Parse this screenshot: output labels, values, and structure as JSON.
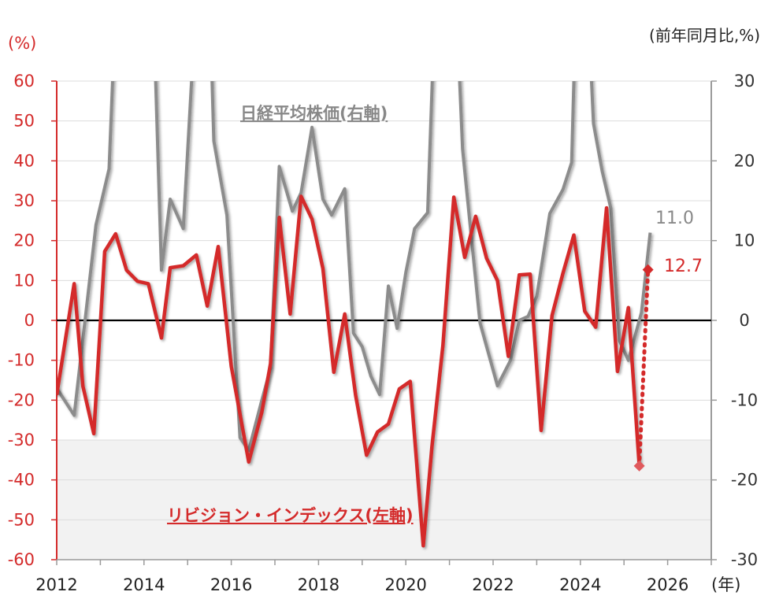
{
  "chart_data": {
    "type": "line",
    "left_axis": {
      "unit": "(%)",
      "ylim": [
        -60,
        60
      ],
      "ticks": [
        60,
        50,
        40,
        30,
        20,
        10,
        0,
        -10,
        -20,
        -30,
        -40,
        -50,
        -60
      ],
      "color": "#d42a2a"
    },
    "right_axis": {
      "unit": "(前年同月比,%)",
      "ylim": [
        -30,
        30
      ],
      "ticks": [
        30,
        20,
        10,
        0,
        -10,
        -20,
        -30
      ],
      "color": "#333333"
    },
    "x_axis": {
      "unit": "(年)",
      "xlim": [
        2012,
        2027
      ],
      "ticks": [
        2012,
        2014,
        2016,
        2018,
        2020,
        2022,
        2024,
        2026
      ]
    },
    "shaded_band_left": [
      -60,
      -30
    ],
    "series": [
      {
        "name": "日経平均株価(右軸)",
        "axis": "right",
        "color": "#8c8c8c",
        "x": [
          2012.0,
          2012.4,
          2012.9,
          2013.2,
          2013.5,
          2014.1,
          2014.4,
          2014.6,
          2014.9,
          2015.4,
          2015.6,
          2015.9,
          2016.2,
          2016.4,
          2016.7,
          2016.9,
          2017.1,
          2017.4,
          2017.6,
          2017.85,
          2018.1,
          2018.3,
          2018.6,
          2018.8,
          2019.0,
          2019.2,
          2019.4,
          2019.6,
          2019.8,
          2020.0,
          2020.2,
          2020.5,
          2020.8,
          2021.0,
          2021.3,
          2021.5,
          2021.7,
          2022.1,
          2022.4,
          2022.6,
          2022.8,
          2023.0,
          2023.3,
          2023.6,
          2023.8,
          2024.0,
          2024.3,
          2024.5,
          2024.7,
          2024.9,
          2025.1,
          2025.4,
          2025.6
        ],
        "values": [
          -8.5,
          -11.9,
          12.0,
          19.0,
          60.0,
          60.0,
          6.3,
          15.2,
          11.5,
          60.0,
          22.5,
          13.2,
          -14.7,
          -16.3,
          -10.0,
          -6.0,
          19.3,
          13.7,
          16.0,
          24.2,
          15.2,
          13.2,
          16.5,
          -1.6,
          -3.3,
          -7.0,
          -9.3,
          4.3,
          -1.0,
          6.0,
          11.5,
          13.5,
          60.0,
          60.0,
          21.5,
          10.5,
          -0.3,
          -8.2,
          -5.0,
          0.0,
          0.5,
          3.0,
          13.4,
          16.4,
          19.8,
          60.0,
          24.7,
          18.7,
          14.0,
          -2.6,
          -5.0,
          1.0,
          11.0
        ],
        "end_label": "11.0"
      },
      {
        "name": "リビジョン・インデックス(左軸)",
        "axis": "left",
        "color": "#d42a2a",
        "x": [
          2012.0,
          2012.4,
          2012.6,
          2012.85,
          2013.1,
          2013.35,
          2013.6,
          2013.85,
          2014.1,
          2014.4,
          2014.6,
          2014.9,
          2015.2,
          2015.45,
          2015.7,
          2016.0,
          2016.4,
          2016.7,
          2016.9,
          2017.1,
          2017.35,
          2017.6,
          2017.85,
          2018.1,
          2018.35,
          2018.6,
          2018.85,
          2019.1,
          2019.35,
          2019.6,
          2019.85,
          2020.1,
          2020.4,
          2020.6,
          2020.85,
          2021.1,
          2021.35,
          2021.6,
          2021.85,
          2022.1,
          2022.35,
          2022.6,
          2022.85,
          2023.1,
          2023.35,
          2023.6,
          2023.85,
          2024.1,
          2024.35,
          2024.6,
          2024.85,
          2025.1,
          2025.35
        ],
        "values": [
          -18.7,
          9.2,
          -16.5,
          -28.4,
          17.3,
          21.7,
          12.6,
          9.8,
          9.2,
          -4.4,
          13.2,
          13.7,
          16.4,
          3.6,
          18.5,
          -11.5,
          -35.5,
          -23.0,
          -10.8,
          25.8,
          1.6,
          31.1,
          25.4,
          13.0,
          -13.0,
          1.6,
          -18.8,
          -33.8,
          -28.0,
          -26.0,
          -17.2,
          -15.3,
          -56.5,
          -31.5,
          -6.3,
          30.9,
          15.8,
          26.1,
          15.6,
          10.0,
          -9.0,
          11.4,
          11.6,
          -27.6,
          1.2,
          11.8,
          21.4,
          2.3,
          -1.7,
          28.2,
          -12.8,
          3.2,
          -36.5
        ],
        "forecast": {
          "x": [
            2025.35,
            2025.55
          ],
          "values": [
            -36.5,
            12.7
          ]
        },
        "end_label": "12.7"
      }
    ],
    "labels": {
      "gray_series": "日経平均株価(右軸)",
      "red_series": "リビジョン・インデックス(左軸)"
    }
  }
}
